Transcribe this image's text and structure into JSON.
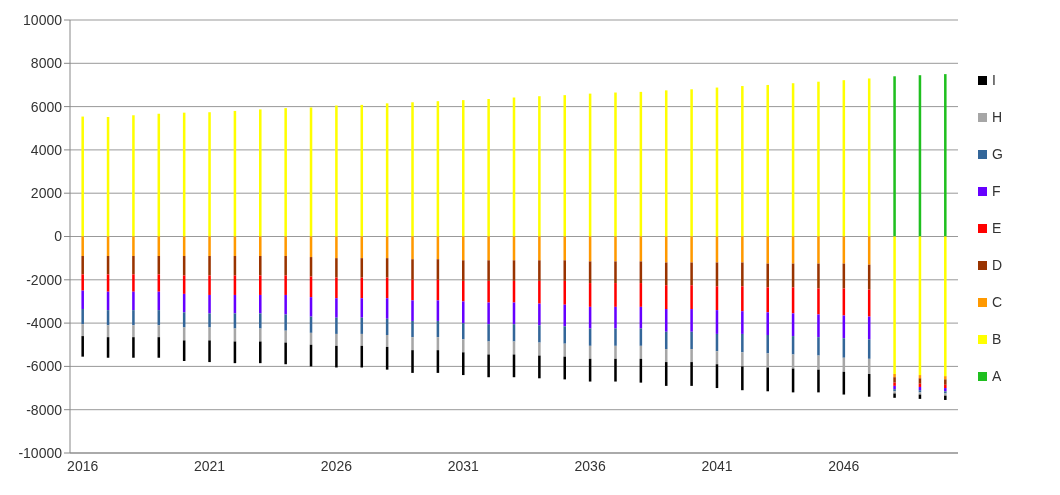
{
  "chart_data": {
    "type": "bar",
    "stacked": true,
    "categories": [
      "2016",
      null,
      null,
      null,
      null,
      "2021",
      null,
      null,
      null,
      null,
      "2026",
      null,
      null,
      null,
      null,
      "2031",
      null,
      null,
      null,
      null,
      "2036",
      null,
      null,
      null,
      null,
      "2041",
      null,
      null,
      null,
      null,
      "2046",
      null,
      null,
      null,
      null
    ],
    "series": [
      {
        "name": "A",
        "color": "#1fbf1f",
        "values": [
          0,
          0,
          0,
          0,
          0,
          0,
          0,
          0,
          0,
          0,
          0,
          0,
          0,
          0,
          0,
          0,
          0,
          0,
          0,
          0,
          0,
          0,
          0,
          0,
          0,
          0,
          0,
          0,
          0,
          0,
          0,
          0,
          7400,
          7450,
          7500
        ]
      },
      {
        "name": "B",
        "color": "#ffff00",
        "values": [
          5540,
          5520,
          5600,
          5670,
          5720,
          5740,
          5800,
          5870,
          5930,
          5960,
          6050,
          6080,
          6150,
          6200,
          6250,
          6300,
          6350,
          6420,
          6480,
          6530,
          6600,
          6650,
          6680,
          6750,
          6800,
          6880,
          6950,
          7000,
          7080,
          7150,
          7220,
          7300,
          -6350,
          -6400,
          -6450
        ]
      },
      {
        "name": "C",
        "color": "#ff9900",
        "values": [
          -900,
          -900,
          -900,
          -900,
          -900,
          -900,
          -900,
          -900,
          -900,
          -950,
          -1000,
          -1000,
          -1000,
          -1050,
          -1050,
          -1100,
          -1100,
          -1100,
          -1100,
          -1100,
          -1150,
          -1150,
          -1150,
          -1200,
          -1200,
          -1200,
          -1200,
          -1250,
          -1250,
          -1250,
          -1250,
          -1300,
          -150,
          -150,
          -150
        ]
      },
      {
        "name": "D",
        "color": "#993300",
        "values": [
          -850,
          -850,
          -850,
          -850,
          -900,
          -900,
          -900,
          -900,
          -900,
          -900,
          -900,
          -900,
          -900,
          -950,
          -950,
          -950,
          -950,
          -950,
          -950,
          -950,
          -1000,
          -1000,
          -1000,
          -1050,
          -1050,
          -1100,
          -1100,
          -1100,
          -1100,
          -1150,
          -1150,
          -1150,
          -250,
          -250,
          -250
        ]
      },
      {
        "name": "E",
        "color": "#ff0000",
        "values": [
          -750,
          -800,
          -800,
          -800,
          -850,
          -900,
          -900,
          -900,
          -900,
          -950,
          -950,
          -950,
          -950,
          -950,
          -950,
          -950,
          -1000,
          -1000,
          -1050,
          -1100,
          -1100,
          -1100,
          -1100,
          -1100,
          -1100,
          -1100,
          -1150,
          -1150,
          -1200,
          -1200,
          -1250,
          -1250,
          -150,
          -150,
          -150
        ]
      },
      {
        "name": "F",
        "color": "#6600ff",
        "values": [
          -850,
          -850,
          -850,
          -850,
          -850,
          -850,
          -850,
          -850,
          -900,
          -900,
          -900,
          -900,
          -950,
          -950,
          -950,
          -1000,
          -1000,
          -1000,
          -1000,
          -1000,
          -1000,
          -1000,
          -1000,
          -1050,
          -1050,
          -1100,
          -1050,
          -1050,
          -1050,
          -1050,
          -1050,
          -1050,
          -150,
          -150,
          -150
        ]
      },
      {
        "name": "G",
        "color": "#336699",
        "values": [
          -700,
          -700,
          -700,
          -700,
          -700,
          -650,
          -700,
          -700,
          -750,
          -750,
          -750,
          -750,
          -750,
          -750,
          -750,
          -750,
          -800,
          -800,
          -800,
          -800,
          -800,
          -800,
          -800,
          -800,
          -800,
          -800,
          -850,
          -850,
          -850,
          -850,
          -900,
          -900,
          -100,
          -100,
          -100
        ]
      },
      {
        "name": "H",
        "color": "#a6a6a6",
        "values": [
          -550,
          -550,
          -550,
          -550,
          -600,
          -600,
          -600,
          -600,
          -550,
          -550,
          -550,
          -550,
          -550,
          -600,
          -600,
          -600,
          -600,
          -600,
          -600,
          -600,
          -600,
          -600,
          -600,
          -600,
          -600,
          -600,
          -650,
          -650,
          -650,
          -650,
          -650,
          -700,
          -100,
          -100,
          -100
        ]
      },
      {
        "name": "I",
        "color": "#000000",
        "values": [
          -950,
          -950,
          -950,
          -950,
          -950,
          -1000,
          -1000,
          -1000,
          -1000,
          -1000,
          -1000,
          -1000,
          -1050,
          -1050,
          -1050,
          -1050,
          -1050,
          -1050,
          -1050,
          -1050,
          -1050,
          -1050,
          -1100,
          -1100,
          -1100,
          -1100,
          -1100,
          -1100,
          -1100,
          -1050,
          -1050,
          -1050,
          -200,
          -200,
          -200
        ]
      }
    ],
    "ylim": [
      -10000,
      10000
    ],
    "yticks": [
      -10000,
      -8000,
      -6000,
      -4000,
      -2000,
      0,
      2000,
      4000,
      6000,
      8000,
      10000
    ],
    "grid": "y",
    "legend": "right"
  }
}
